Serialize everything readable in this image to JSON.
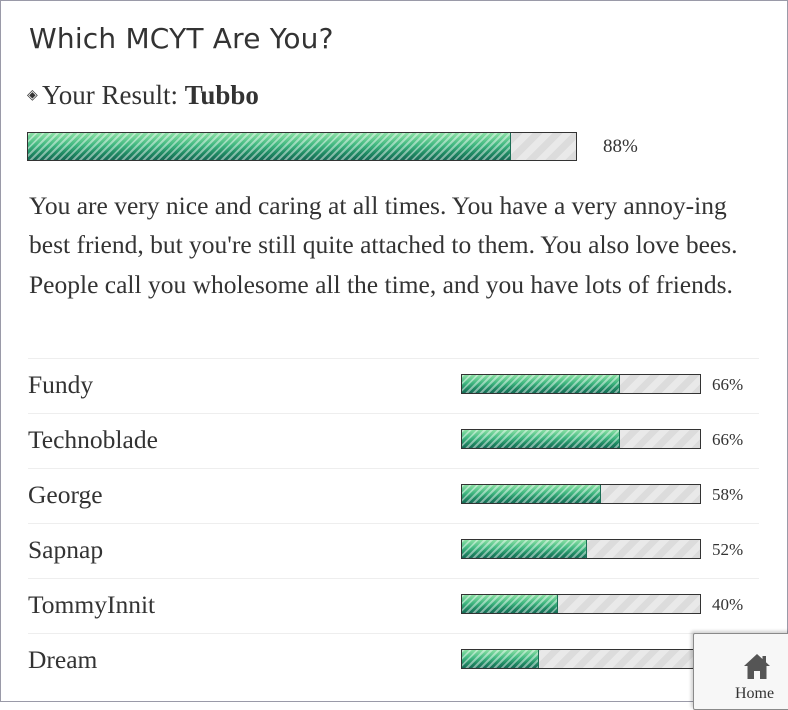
{
  "quiz": {
    "title": "Which MCYT Are You?",
    "result_prefix": "Your Result:",
    "result_name": "Tubbo",
    "result_percent": 88,
    "result_percent_label": "88%",
    "description": "You are very nice and caring at all times. You have a very annoy-ing best friend, but you're still quite attached to them. You also love bees. People call you wholesome all the time, and you have lots of friends."
  },
  "results": [
    {
      "name": "Fundy",
      "percent": 66,
      "label": "66%"
    },
    {
      "name": "Technoblade",
      "percent": 66,
      "label": "66%"
    },
    {
      "name": "George",
      "percent": 58,
      "label": "58%"
    },
    {
      "name": "Sapnap",
      "percent": 52,
      "label": "52%"
    },
    {
      "name": "TommyInnit",
      "percent": 40,
      "label": "40%"
    },
    {
      "name": "Dream",
      "percent": 32,
      "label": ""
    }
  ],
  "home_button": {
    "label": "Home",
    "icon": "home-icon"
  },
  "colors": {
    "bar_fill": "#2b9a6e",
    "bar_track": "#e6e6e6",
    "text": "#333333"
  }
}
